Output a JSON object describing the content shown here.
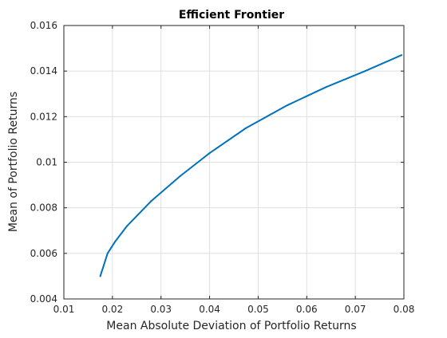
{
  "chart_data": {
    "type": "line",
    "title": "Efficient Frontier",
    "xlabel": "Mean Absolute Deviation of Portfolio Returns",
    "ylabel": "Mean of Portfolio Returns",
    "xlim": [
      0.01,
      0.08
    ],
    "ylim": [
      0.004,
      0.016
    ],
    "xticks": [
      0.01,
      0.02,
      0.03,
      0.04,
      0.05,
      0.06,
      0.07,
      0.08
    ],
    "xtick_labels": [
      "0.01",
      "0.02",
      "0.03",
      "0.04",
      "0.05",
      "0.06",
      "0.07",
      "0.08"
    ],
    "yticks": [
      0.004,
      0.006,
      0.008,
      0.01,
      0.012,
      0.014,
      0.016
    ],
    "ytick_labels": [
      "0.004",
      "0.006",
      "0.008",
      "0.01",
      "0.012",
      "0.014",
      "0.016"
    ],
    "grid": true,
    "series": [
      {
        "color": "#0072bd",
        "x": [
          0.0175,
          0.0178,
          0.019,
          0.0205,
          0.023,
          0.028,
          0.034,
          0.04,
          0.0475,
          0.056,
          0.064,
          0.072,
          0.0795
        ],
        "y": [
          0.005,
          0.0052,
          0.006,
          0.0065,
          0.0072,
          0.0083,
          0.0094,
          0.0104,
          0.0115,
          0.0125,
          0.0133,
          0.014,
          0.0147
        ]
      }
    ]
  }
}
